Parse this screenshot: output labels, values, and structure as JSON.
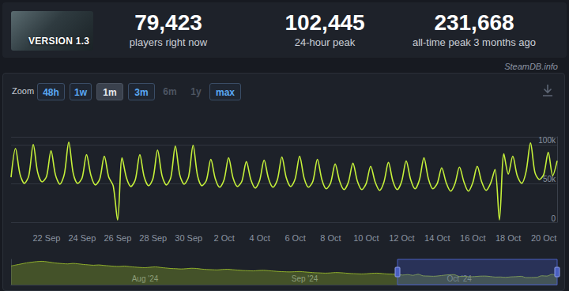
{
  "header": {
    "image_text": "VERSION 1.3",
    "stats": [
      {
        "value": "79,423",
        "label": "players right now"
      },
      {
        "value": "102,445",
        "label": "24-hour peak"
      },
      {
        "value": "231,668",
        "label": "all-time peak 3 months ago"
      }
    ],
    "source": "SteamDB.info"
  },
  "zoom": {
    "label": "Zoom",
    "buttons": [
      "48h",
      "1w",
      "1m",
      "3m",
      "6m",
      "1y",
      "max"
    ],
    "active": "1m",
    "disabled": [
      "6m",
      "1y"
    ]
  },
  "chart_data": [
    {
      "type": "line",
      "categories": [
        null,
        null,
        null,
        null,
        null,
        null,
        null,
        null,
        "22 Sep",
        null,
        null,
        null,
        null,
        null,
        null,
        null,
        "24 Sep",
        null,
        null,
        null,
        null,
        null,
        null,
        null,
        "26 Sep",
        null,
        null,
        null,
        null,
        null,
        null,
        null,
        "28 Sep",
        null,
        null,
        null,
        null,
        null,
        null,
        null,
        "30 Sep",
        null,
        null,
        null,
        null,
        null,
        null,
        null,
        "2 Oct",
        null,
        null,
        null,
        null,
        null,
        null,
        null,
        "4 Oct",
        null,
        null,
        null,
        null,
        null,
        null,
        null,
        "6 Oct",
        null,
        null,
        null,
        null,
        null,
        null,
        null,
        "8 Oct",
        null,
        null,
        null,
        null,
        null,
        null,
        null,
        "10 Oct",
        null,
        null,
        null,
        null,
        null,
        null,
        null,
        "12 Oct",
        null,
        null,
        null,
        null,
        null,
        null,
        null,
        "14 Oct",
        null,
        null,
        null,
        null,
        null,
        null,
        null,
        "16 Oct",
        null,
        null,
        null,
        null,
        null,
        null,
        null,
        "18 Oct",
        null,
        null,
        null,
        null,
        null,
        null,
        null,
        "20 Oct",
        null,
        null,
        null
      ],
      "values": [
        58000,
        95000,
        62000,
        50000,
        60000,
        100000,
        64000,
        52000,
        59000,
        92000,
        61000,
        49000,
        62000,
        103000,
        63000,
        50000,
        57000,
        87000,
        60000,
        48000,
        56000,
        85000,
        58000,
        47000,
        3000,
        83000,
        57000,
        46000,
        55000,
        87000,
        58000,
        47000,
        57000,
        93000,
        60000,
        48000,
        58000,
        98000,
        61000,
        49000,
        59000,
        99000,
        60000,
        47000,
        54000,
        81000,
        56000,
        45000,
        55000,
        83000,
        57000,
        46000,
        53000,
        78000,
        55000,
        44000,
        54000,
        80000,
        56000,
        45000,
        55000,
        84000,
        57000,
        46000,
        56000,
        85000,
        57000,
        45000,
        53000,
        81000,
        55000,
        43000,
        51000,
        75000,
        53000,
        42000,
        52000,
        76000,
        53000,
        42000,
        50000,
        72000,
        52000,
        41000,
        52000,
        77000,
        53000,
        42000,
        53000,
        79000,
        55000,
        43000,
        55000,
        83000,
        56000,
        43000,
        50000,
        70000,
        51000,
        40000,
        50000,
        71000,
        52000,
        40000,
        51000,
        72000,
        52000,
        41000,
        50000,
        68000,
        3000,
        88000,
        62000,
        85000,
        60000,
        50000,
        65000,
        102000,
        64000,
        55000,
        62000,
        90000,
        60000,
        79000
      ],
      "color": "#c5f03a",
      "ylim": [
        0,
        110000
      ],
      "yticks": [
        0,
        {
          "value": 50000,
          "label": "50k"
        },
        {
          "value": 100000,
          "label": "100k"
        }
      ],
      "grid": true
    },
    {
      "type": "area",
      "categories": [
        null,
        null,
        null,
        null,
        null,
        null,
        null,
        null,
        null,
        null,
        null,
        null,
        null,
        null,
        null,
        null,
        null,
        null,
        null,
        null,
        null,
        null,
        null,
        null,
        null,
        null,
        "Aug '24",
        null,
        null,
        null,
        null,
        null,
        null,
        null,
        null,
        null,
        null,
        null,
        null,
        null,
        null,
        null,
        null,
        null,
        null,
        null,
        null,
        null,
        null,
        null,
        null,
        null,
        null,
        null,
        null,
        null,
        null,
        "Sep '24",
        null,
        null,
        null,
        null,
        null,
        null,
        null,
        null,
        null,
        null,
        null,
        null,
        null,
        null,
        null,
        null,
        null,
        null,
        null,
        null,
        null,
        null,
        null,
        null,
        null,
        null,
        null,
        null,
        null,
        "Oct '24",
        null,
        null,
        null,
        null,
        null,
        null,
        null,
        null,
        null,
        null,
        null,
        null,
        null,
        null,
        null,
        null,
        null,
        null,
        null
      ],
      "values": [
        185000,
        195000,
        205000,
        215000,
        222000,
        228000,
        231000,
        226000,
        218000,
        212000,
        208000,
        205000,
        210000,
        206000,
        200000,
        196000,
        192000,
        195000,
        190000,
        186000,
        182000,
        180000,
        184000,
        178000,
        174000,
        170000,
        168000,
        172000,
        176000,
        170000,
        165000,
        160000,
        158000,
        155000,
        158000,
        162000,
        160000,
        154000,
        150000,
        148000,
        146000,
        150000,
        152000,
        148000,
        144000,
        140000,
        138000,
        136000,
        140000,
        142000,
        138000,
        134000,
        130000,
        128000,
        126000,
        128000,
        130000,
        126000,
        122000,
        118000,
        116000,
        114000,
        116000,
        120000,
        118000,
        114000,
        110000,
        108000,
        106000,
        108000,
        112000,
        114000,
        110000,
        106000,
        104000,
        102000,
        95000,
        100000,
        92000,
        103000,
        87000,
        85000,
        83000,
        87000,
        93000,
        98000,
        99000,
        81000,
        83000,
        78000,
        80000,
        84000,
        85000,
        81000,
        75000,
        76000,
        72000,
        77000,
        79000,
        83000,
        70000,
        71000,
        72000,
        88000,
        85000,
        102000,
        90000
      ],
      "color": "#8fae2c",
      "ylim": [
        0,
        250000
      ],
      "tick_labels": "x",
      "grid": false
    }
  ]
}
